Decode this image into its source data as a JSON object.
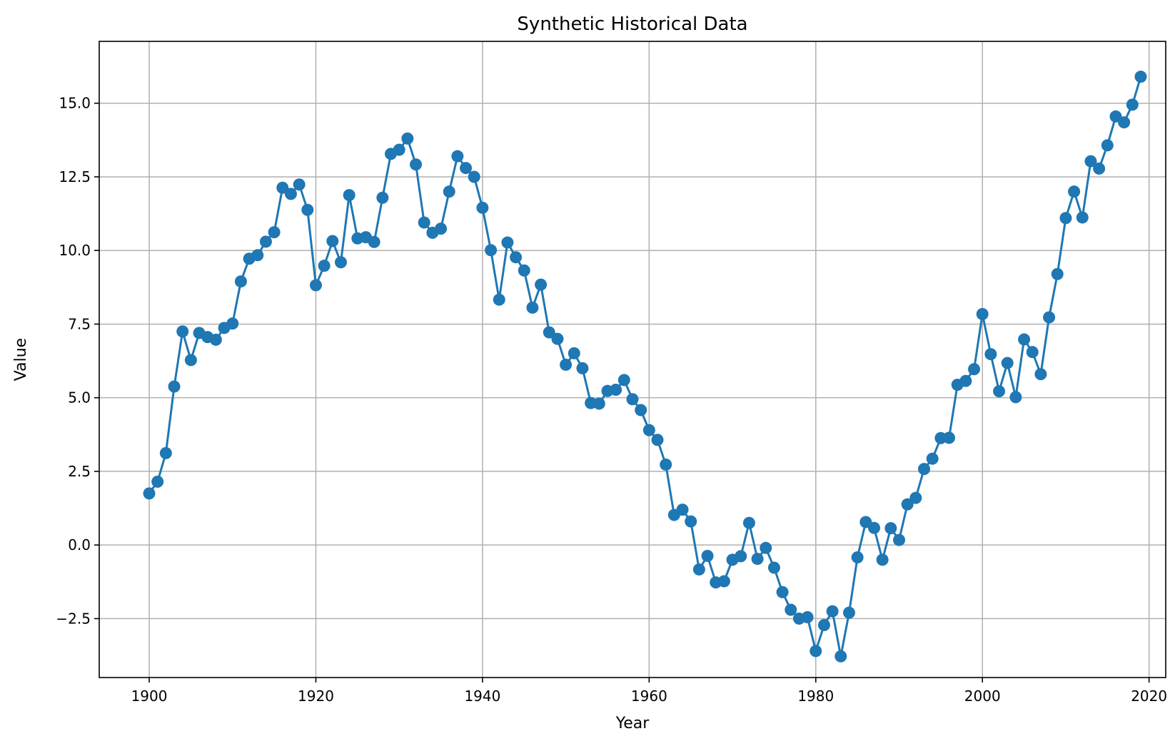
{
  "chart_data": {
    "type": "line",
    "title": "Synthetic Historical Data",
    "xlabel": "Year",
    "ylabel": "Value",
    "xlim": [
      1894,
      2022
    ],
    "ylim": [
      -4.5,
      17.1
    ],
    "x_ticks": [
      1900,
      1920,
      1940,
      1960,
      1980,
      2000,
      2020
    ],
    "x_tick_labels": [
      "1900",
      "1920",
      "1940",
      "1960",
      "1980",
      "2000",
      "2020"
    ],
    "y_ticks": [
      -2.5,
      0.0,
      2.5,
      5.0,
      7.5,
      10.0,
      12.5,
      15.0
    ],
    "y_tick_labels": [
      "−2.5",
      "0.0",
      "2.5",
      "5.0",
      "7.5",
      "10.0",
      "12.5",
      "15.0"
    ],
    "grid": true,
    "markers": "circle",
    "color": "#1f77b4",
    "series": [
      {
        "x": [
          1900,
          1901,
          1902,
          1903,
          1904,
          1905,
          1906,
          1907,
          1908,
          1909,
          1910,
          1911,
          1912,
          1913,
          1914,
          1915,
          1916,
          1917,
          1918,
          1919,
          1920,
          1921,
          1922,
          1923,
          1924,
          1925,
          1926,
          1927,
          1928,
          1929,
          1930,
          1931,
          1932,
          1933,
          1934,
          1935,
          1936,
          1937,
          1938,
          1939,
          1940,
          1941,
          1942,
          1943,
          1944,
          1945,
          1946,
          1947,
          1948,
          1949,
          1950,
          1951,
          1952,
          1953,
          1954,
          1955,
          1956,
          1957,
          1958,
          1959,
          1960,
          1961,
          1962,
          1963,
          1964,
          1965,
          1966,
          1967,
          1968,
          1969,
          1970,
          1971,
          1972,
          1973,
          1974,
          1975,
          1976,
          1977,
          1978,
          1979,
          1980,
          1981,
          1982,
          1983,
          1984,
          1985,
          1986,
          1987,
          1988,
          1989,
          1990,
          1991,
          1992,
          1993,
          1994,
          1995,
          1996,
          1997,
          1998,
          1999,
          2000,
          2001,
          2002,
          2003,
          2004,
          2005,
          2006,
          2007,
          2008,
          2009,
          2010,
          2011,
          2012,
          2013,
          2014,
          2015,
          2016,
          2017,
          2018,
          2019
        ],
        "y": [
          1.75,
          2.15,
          3.12,
          5.38,
          7.25,
          6.28,
          7.2,
          7.06,
          6.97,
          7.37,
          7.52,
          8.95,
          9.72,
          9.84,
          10.3,
          10.62,
          12.13,
          11.92,
          12.24,
          11.38,
          8.82,
          9.48,
          10.32,
          9.6,
          11.88,
          10.41,
          10.45,
          10.29,
          11.79,
          13.28,
          13.42,
          13.8,
          12.92,
          10.95,
          10.6,
          10.74,
          12.0,
          13.2,
          12.8,
          12.5,
          11.45,
          10.01,
          8.33,
          10.27,
          9.77,
          9.32,
          8.06,
          8.84,
          7.22,
          7.0,
          6.12,
          6.51,
          6.0,
          4.82,
          4.8,
          5.23,
          5.27,
          5.6,
          4.95,
          4.58,
          3.9,
          3.57,
          2.73,
          1.02,
          1.2,
          0.8,
          -0.83,
          -0.37,
          -1.27,
          -1.23,
          -0.5,
          -0.38,
          0.75,
          -0.47,
          -0.1,
          -0.77,
          -1.6,
          -2.2,
          -2.5,
          -2.45,
          -3.6,
          -2.72,
          -2.25,
          -3.78,
          -2.3,
          -0.42,
          0.78,
          0.58,
          -0.5,
          0.57,
          0.17,
          1.38,
          1.6,
          2.58,
          2.93,
          3.63,
          3.64,
          5.44,
          5.57,
          5.97,
          7.84,
          6.48,
          5.22,
          6.18,
          5.02,
          6.98,
          6.55,
          5.8,
          7.73,
          9.2,
          11.1,
          12.0,
          11.12,
          13.03,
          12.78,
          13.57,
          14.55,
          14.35,
          14.95,
          15.9
        ]
      }
    ]
  }
}
